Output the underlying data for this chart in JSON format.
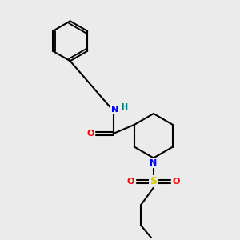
{
  "background_color": "#ebebeb",
  "atom_colors": {
    "N": "#0000ff",
    "O": "#ff0000",
    "S": "#cccc00",
    "H": "#008080",
    "C": "#000000"
  },
  "bond_color": "#000000",
  "bond_width": 1.5,
  "figsize": [
    3.0,
    3.0
  ],
  "dpi": 100
}
